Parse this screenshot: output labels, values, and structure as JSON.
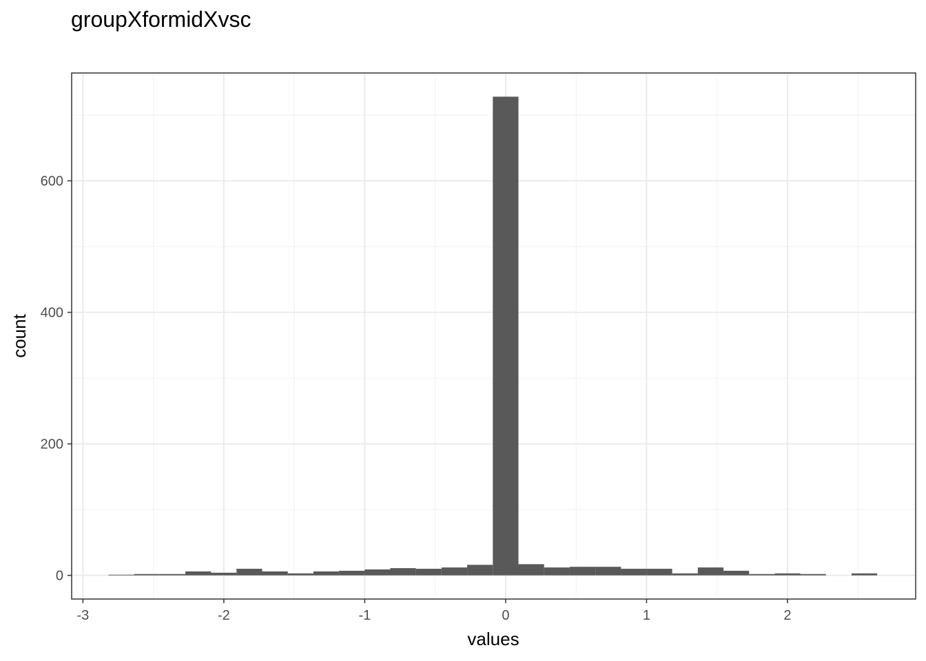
{
  "chart_data": {
    "type": "bar",
    "title": "groupXformidXvsc",
    "xlabel": "values",
    "ylabel": "count",
    "xlim": [
      -3.08,
      2.91
    ],
    "ylim": [
      -36,
      764
    ],
    "x_ticks": [
      -3,
      -2,
      -1,
      0,
      1,
      2
    ],
    "x_tick_labels": [
      "-3",
      "-2",
      "-1",
      "0",
      "1",
      "2"
    ],
    "y_ticks": [
      0,
      200,
      400,
      600
    ],
    "y_tick_labels": [
      "0",
      "200",
      "400",
      "600"
    ],
    "bin_width": 0.1819,
    "bin_centers": [
      -2.728,
      -2.546,
      -2.364,
      -2.182,
      -2.001,
      -1.819,
      -1.637,
      -1.455,
      -1.273,
      -1.091,
      -0.909,
      -0.728,
      -0.546,
      -0.364,
      -0.182,
      0.0,
      0.182,
      0.364,
      0.546,
      0.728,
      0.909,
      1.091,
      1.273,
      1.455,
      1.637,
      1.819,
      2.001,
      2.182,
      2.364,
      2.546
    ],
    "values": [
      1,
      2,
      2,
      6,
      4,
      10,
      6,
      3,
      6,
      7,
      9,
      11,
      10,
      12,
      16,
      728,
      17,
      12,
      13,
      13,
      10,
      10,
      3,
      12,
      7,
      2,
      3,
      2,
      0,
      3
    ],
    "bar_color": "#595959",
    "grid": true,
    "legend": "none"
  }
}
